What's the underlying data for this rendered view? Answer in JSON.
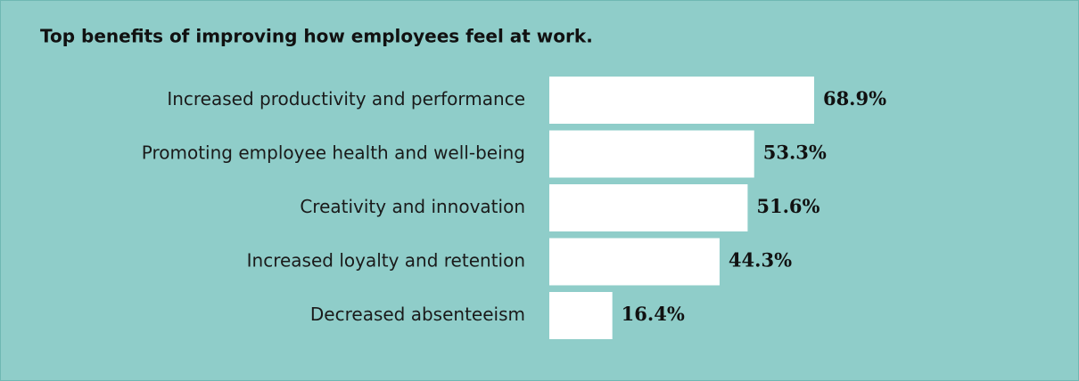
{
  "chart_data": {
    "type": "bar",
    "orientation": "horizontal",
    "title": "Top benefits of improving how employees feel at work.",
    "categories": [
      "Increased productivity and performance",
      "Promoting employee health and well-being",
      "Creativity and innovation",
      "Increased loyalty and retention",
      "Decreased absenteeism"
    ],
    "values": [
      68.9,
      53.3,
      51.6,
      44.3,
      16.4
    ],
    "value_labels": [
      "68.9%",
      "53.3%",
      "51.6%",
      "44.3%",
      "16.4%"
    ],
    "color": "#ffffff"
  }
}
